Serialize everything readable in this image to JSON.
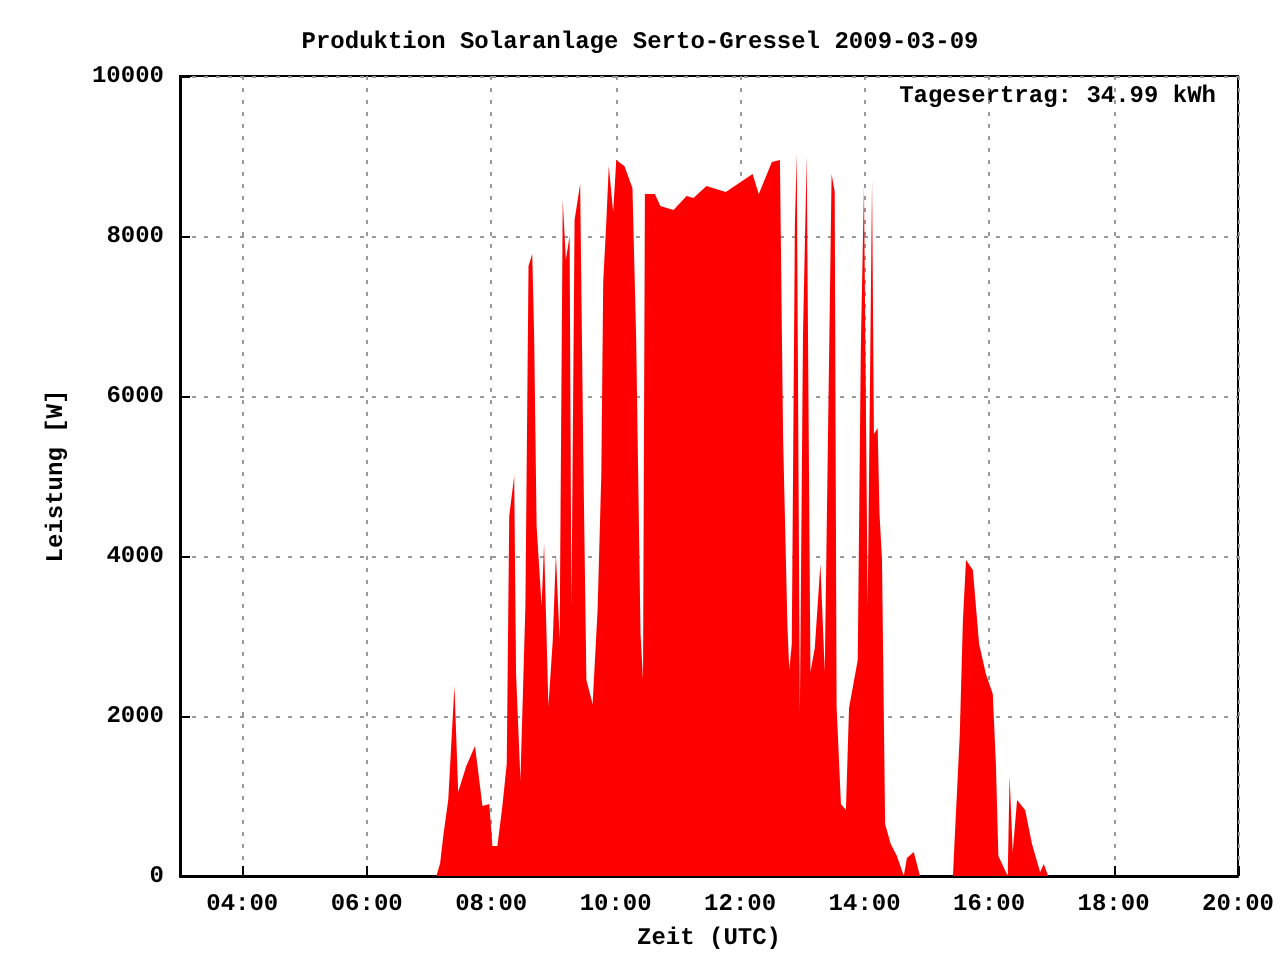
{
  "chart_data": {
    "type": "area",
    "title": "Produktion Solaranlage Serto-Gressel 2009-03-09",
    "xlabel": "Zeit (UTC)",
    "ylabel": "Leistung [W]",
    "annotations": [
      "Tagesertrag: 34.99 kWh"
    ],
    "xlim": [
      3,
      20
    ],
    "xticks": [
      {
        "value": 4,
        "label": "04:00"
      },
      {
        "value": 6,
        "label": "06:00"
      },
      {
        "value": 8,
        "label": "08:00"
      },
      {
        "value": 10,
        "label": "10:00"
      },
      {
        "value": 12,
        "label": "12:00"
      },
      {
        "value": 14,
        "label": "14:00"
      },
      {
        "value": 16,
        "label": "16:00"
      },
      {
        "value": 18,
        "label": "18:00"
      },
      {
        "value": 20,
        "label": "20:00"
      }
    ],
    "ylim": [
      0,
      10000
    ],
    "yticks": [
      0,
      2000,
      4000,
      6000,
      8000,
      10000
    ],
    "grid": true,
    "marker": "none",
    "series": [
      {
        "color": "#ff0000",
        "x": [
          7.0,
          7.12,
          7.18,
          7.23,
          7.31,
          7.41,
          7.47,
          7.6,
          7.74,
          7.86,
          7.97,
          8.02,
          8.1,
          8.18,
          8.25,
          8.29,
          8.37,
          8.4,
          8.47,
          8.55,
          8.6,
          8.66,
          8.69,
          8.73,
          8.81,
          8.85,
          8.92,
          8.99,
          9.04,
          9.1,
          9.15,
          9.2,
          9.26,
          9.29,
          9.34,
          9.43,
          9.48,
          9.53,
          9.63,
          9.71,
          9.77,
          9.8,
          9.85,
          9.89,
          9.96,
          10.01,
          10.14,
          10.27,
          10.33,
          10.4,
          10.44,
          10.47,
          10.63,
          10.72,
          10.93,
          11.14,
          11.25,
          11.46,
          11.77,
          12.2,
          12.3,
          12.51,
          12.64,
          12.69,
          12.76,
          12.79,
          12.83,
          12.88,
          12.91,
          12.96,
          13.01,
          13.07,
          13.13,
          13.2,
          13.29,
          13.36,
          13.4,
          13.47,
          13.52,
          13.55,
          13.62,
          13.7,
          13.75,
          13.89,
          13.94,
          13.99,
          14.05,
          14.12,
          14.15,
          14.21,
          14.24,
          14.28,
          14.33,
          14.42,
          14.52,
          14.63,
          14.68,
          14.79,
          14.89,
          15.42,
          15.45,
          15.53,
          15.58,
          15.63,
          15.74,
          15.84,
          15.95,
          16.06,
          16.11,
          16.15,
          16.21,
          16.3,
          16.33,
          16.38,
          16.45,
          16.58,
          16.69,
          16.82,
          16.88,
          16.95
        ],
        "values": [
          0,
          0,
          160,
          500,
          950,
          2375,
          1050,
          1375,
          1625,
          875,
          900,
          375,
          375,
          875,
          1400,
          4500,
          5000,
          2525,
          1200,
          3375,
          7625,
          7775,
          6775,
          4375,
          3375,
          4150,
          2125,
          2950,
          4025,
          2950,
          8450,
          7700,
          8000,
          3375,
          8200,
          8650,
          5275,
          2450,
          2150,
          3325,
          5025,
          7425,
          8175,
          8875,
          8300,
          8950,
          8875,
          8600,
          6700,
          3025,
          2450,
          8525,
          8525,
          8375,
          8325,
          8500,
          8475,
          8625,
          8550,
          8775,
          8525,
          8925,
          8950,
          5500,
          3125,
          2575,
          2900,
          8125,
          9025,
          2025,
          6750,
          9000,
          2550,
          2850,
          3900,
          2550,
          4825,
          8775,
          8550,
          2125,
          900,
          825,
          2100,
          2700,
          6625,
          8625,
          3375,
          8700,
          5525,
          5600,
          4525,
          3950,
          650,
          400,
          250,
          0,
          225,
          300,
          0,
          0,
          500,
          1775,
          3200,
          3950,
          3825,
          2900,
          2525,
          2275,
          1400,
          250,
          150,
          0,
          1250,
          300,
          950,
          825,
          400,
          50,
          150,
          0
        ]
      }
    ]
  }
}
